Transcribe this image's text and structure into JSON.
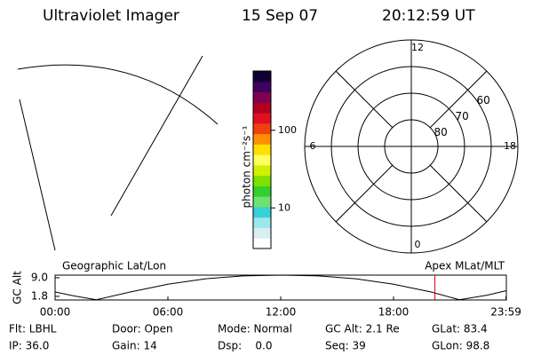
{
  "header": {
    "title": "Ultraviolet Imager",
    "date": "15 Sep 07",
    "time": "20:12:59 UT"
  },
  "colorbar": {
    "label": "photon cm⁻²s⁻¹",
    "log": true,
    "ylim": [
      3,
      580
    ],
    "yticks": [
      10,
      100
    ],
    "colors": [
      "#ffffff",
      "#d8eef0",
      "#9ee6ea",
      "#38d0d8",
      "#70e070",
      "#30d030",
      "#80e000",
      "#d0f000",
      "#ffff60",
      "#ffe000",
      "#ff9000",
      "#f04010",
      "#e01020",
      "#b00020",
      "#800050",
      "#400060",
      "#100030"
    ]
  },
  "polar": {
    "lat_limit": 50,
    "lat_rings": [
      80,
      70,
      60
    ],
    "mlt_ticks": [
      0,
      6,
      12,
      18
    ]
  },
  "altitude_plot": {
    "type": "line",
    "y_label": "GC Alt",
    "left_title": "Geographic Lat/Lon",
    "right_title": "Apex MLat/MLT",
    "xlim": [
      0,
      24
    ],
    "ylim": [
      0.4,
      10
    ],
    "xticks": [
      {
        "value": 0,
        "label": "00:00"
      },
      {
        "value": 6,
        "label": "06:00"
      },
      {
        "value": 12,
        "label": "12:00"
      },
      {
        "value": 18,
        "label": "18:00"
      },
      {
        "value": 23.98,
        "label": "23:59"
      }
    ],
    "yticks": [
      {
        "value": 1.8,
        "label": "1.8"
      },
      {
        "value": 9.0,
        "label": "9.0"
      }
    ],
    "x": [
      0,
      1,
      2.2,
      4,
      6,
      8,
      10,
      12,
      14,
      16,
      18,
      20,
      21.5,
      23,
      24
    ],
    "values": [
      3.5,
      2.0,
      0.5,
      3.5,
      6.5,
      8.6,
      9.7,
      10,
      9.7,
      8.6,
      6.5,
      3.5,
      0.5,
      2.3,
      4.0
    ],
    "color": "#000000",
    "current_time": 20.2,
    "current_time_color": "#e00000"
  },
  "info": [
    [
      "Flt: LBHL",
      "Door: Open",
      "Mode: Normal",
      "GC Alt: 2.1 Re",
      "GLat: 83.4"
    ],
    [
      "IP: 36.0",
      "Gain: 14",
      "Dsp:    0.0",
      "Seq: 39",
      "GLon: 98.8"
    ]
  ]
}
